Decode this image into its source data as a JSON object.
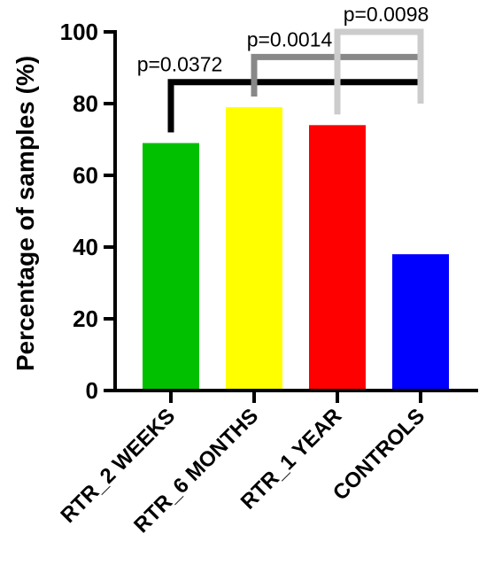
{
  "chart_data": {
    "type": "bar",
    "title": "",
    "xlabel": "",
    "ylabel": "Percentage of samples (%)",
    "ylim": [
      0,
      100
    ],
    "y_ticks": [
      0,
      20,
      40,
      60,
      80,
      100
    ],
    "grid": false,
    "legend": "none",
    "categories": [
      "RTR_2 WEEKS",
      "RTR_6 MONTHS",
      "RTR_1 YEAR",
      "CONTROLS"
    ],
    "values": [
      69,
      79,
      74,
      38
    ],
    "colors": [
      "#00c000",
      "#ffff00",
      "#ff0000",
      "#0000ff"
    ],
    "comparisons": [
      {
        "from": 0,
        "to": 3,
        "label": "p=0.0372",
        "color": "#000000",
        "level": 86
      },
      {
        "from": 1,
        "to": 3,
        "label": "p=0.0014",
        "color": "#888888",
        "level": 93
      },
      {
        "from": 2,
        "to": 3,
        "label": "p=0.0098",
        "color": "#cccccc",
        "level": 100
      }
    ]
  }
}
